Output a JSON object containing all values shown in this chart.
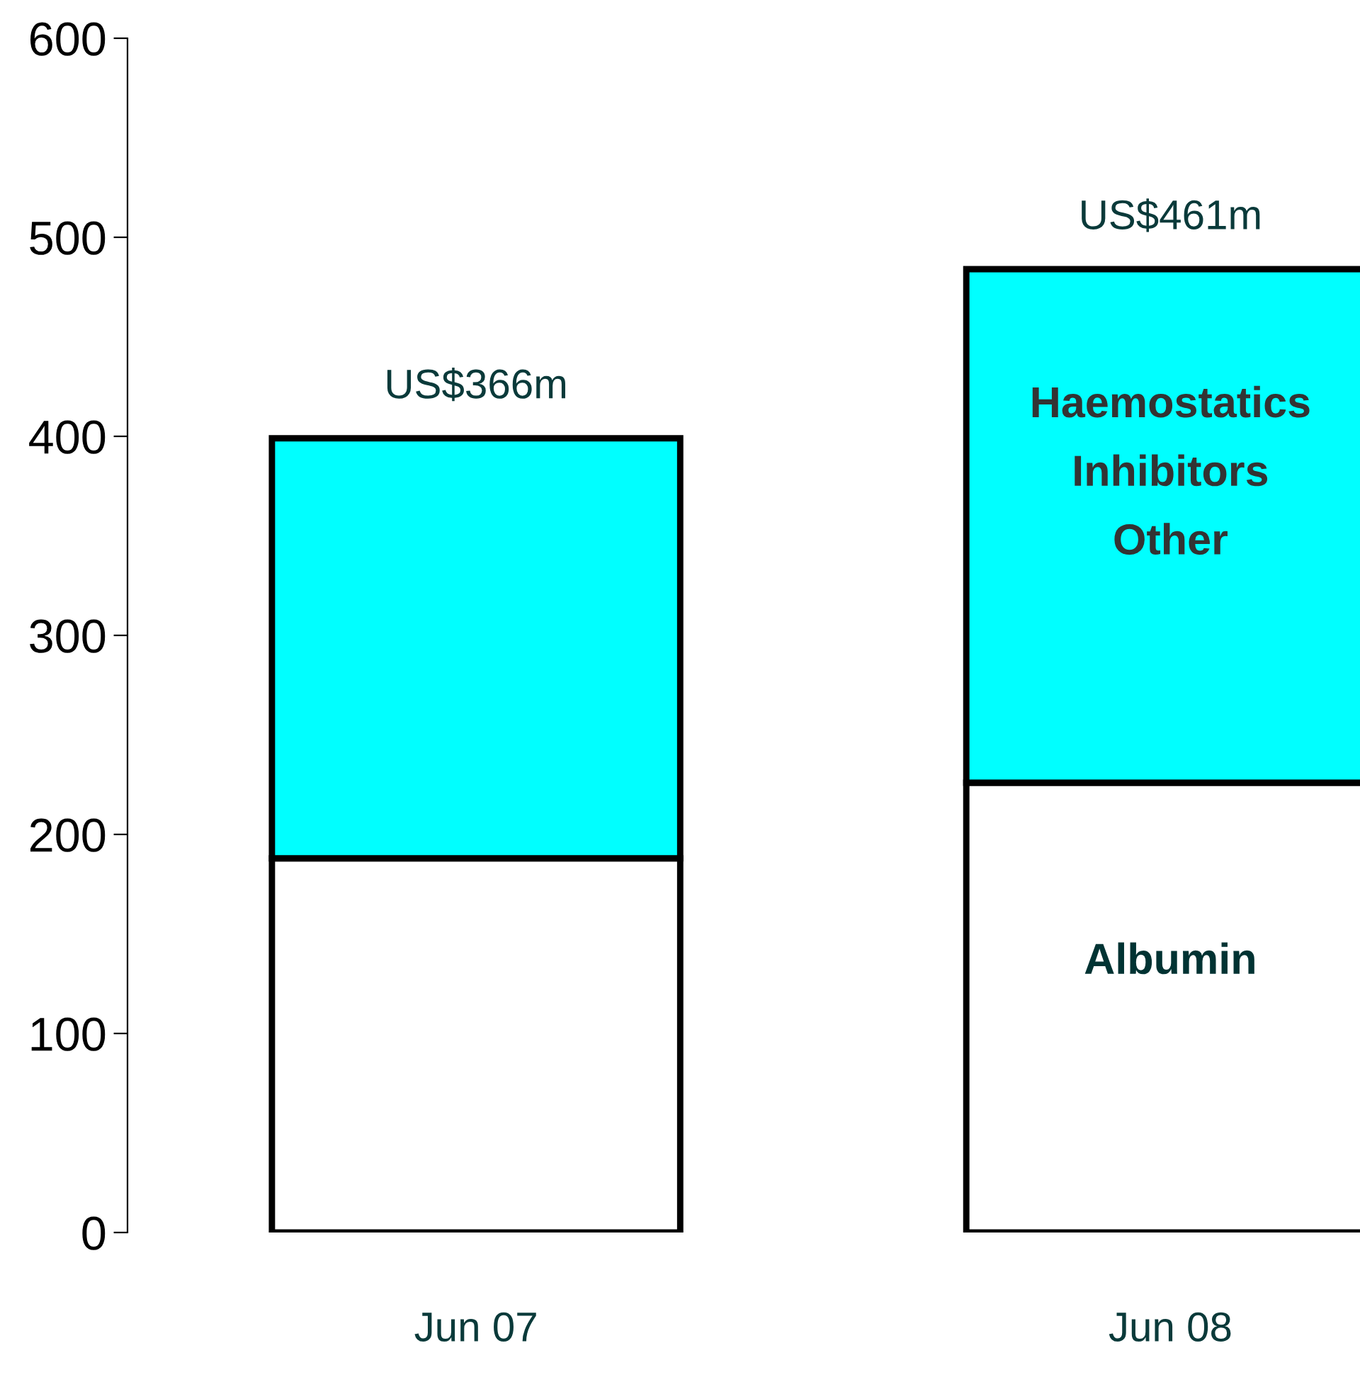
{
  "chart_data": {
    "type": "bar",
    "stacked": true,
    "categories": [
      "Jun 07",
      "Jun 08"
    ],
    "series": [
      {
        "name": "Albumin",
        "color": "#ffffff",
        "values": [
          188,
          226
        ]
      },
      {
        "name": "Haemostatics\nInhibitors\nOther",
        "color": "#00ffff",
        "values": [
          211,
          258
        ]
      }
    ],
    "totals": [
      "US$366m",
      "US$461m"
    ],
    "ylim": [
      0,
      600
    ],
    "yticks": [
      0,
      100,
      200,
      300,
      400,
      500,
      600
    ],
    "grid": false,
    "legend": false
  }
}
